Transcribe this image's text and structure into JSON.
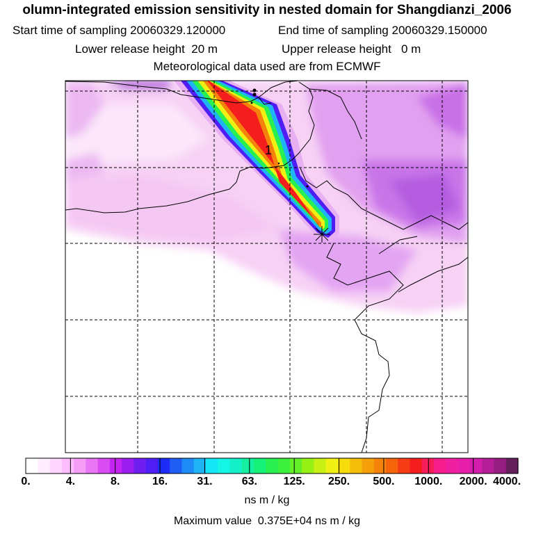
{
  "header": {
    "title": "olumn-integrated emission sensitivity in nested domain for Shangdianzi_2006",
    "start_label": "Start time of sampling",
    "start_value": "20060329.120000",
    "end_label": "End time of sampling",
    "end_value": "20060329.150000",
    "lower_label": "Lower release height",
    "lower_value": "20 m",
    "upper_label": "Upper release height",
    "upper_value": "0 m",
    "met_text": "Meteorological data used are from ECMWF"
  },
  "map": {
    "plume_label": "1",
    "release_site": "receptor-star-icon"
  },
  "colorbar": {
    "tick_labels": [
      "0.",
      "4.",
      "8.",
      "16.",
      "31.",
      "63.",
      "125.",
      "250.",
      "500.",
      "1000.",
      "2000.",
      "4000."
    ],
    "colors": [
      "#ffffff",
      "#ffeeff",
      "#ffd7ff",
      "#ffbcff",
      "#f59df5",
      "#e876f5",
      "#d94cf2",
      "#c324f0",
      "#9a1ef0",
      "#6f1ef0",
      "#4f1ef5",
      "#1e2cf5",
      "#1e5ef5",
      "#1e8af5",
      "#1eb4f5",
      "#14e6f5",
      "#14f5e6",
      "#14f0c8",
      "#14f0a0",
      "#14f078",
      "#28f050",
      "#3cf03c",
      "#64f028",
      "#96f014",
      "#c8f014",
      "#f0f014",
      "#f5dc0a",
      "#f5be0a",
      "#f5a00a",
      "#f5820a",
      "#f5640a",
      "#f53c14",
      "#f51e1e",
      "#f51e5a",
      "#f51e8c",
      "#f01ea0",
      "#e61eaa",
      "#d21eaa",
      "#b41e96",
      "#961e82",
      "#641e5a"
    ],
    "units": "ns m / kg",
    "max_label": "Maximum value",
    "max_value": "0.375E+04 ns m / kg"
  },
  "icons": [
    "receptor-star-icon",
    "city-dot-icon"
  ]
}
